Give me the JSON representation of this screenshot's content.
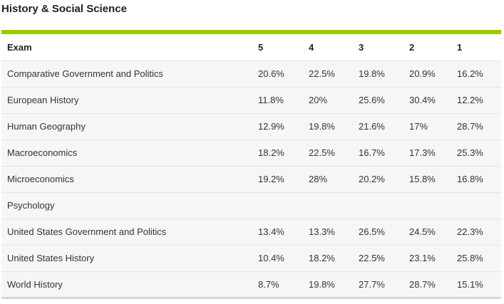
{
  "section": {
    "title": "History & Social Science"
  },
  "colors": {
    "accent": "#99cc00",
    "row_background": "#f6f6f6",
    "header_background": "#ffffff"
  },
  "table": {
    "headers": [
      "Exam",
      "5",
      "4",
      "3",
      "2",
      "1"
    ],
    "rows": [
      [
        "Comparative Government and Politics",
        "20.6%",
        "22.5%",
        "19.8%",
        "20.9%",
        "16.2%"
      ],
      [
        "European History",
        "11.8%",
        "20%",
        "25.6%",
        "30.4%",
        "12.2%"
      ],
      [
        "Human Geography",
        "12.9%",
        "19.8%",
        "21.6%",
        "17%",
        "28.7%"
      ],
      [
        "Macroeconomics",
        "18.2%",
        "22.5%",
        "16.7%",
        "17.3%",
        "25.3%"
      ],
      [
        "Microeconomics",
        "19.2%",
        "28%",
        "20.2%",
        "15.8%",
        "16.8%"
      ],
      [
        "Psychology",
        "",
        "",
        "",
        "",
        ""
      ],
      [
        "United States Government and Politics",
        "13.4%",
        "13.3%",
        "26.5%",
        "24.5%",
        "22.3%"
      ],
      [
        "United States History",
        "10.4%",
        "18.2%",
        "22.5%",
        "23.1%",
        "25.8%"
      ],
      [
        "World History",
        "8.7%",
        "19.8%",
        "27.7%",
        "28.7%",
        "15.1%"
      ]
    ]
  }
}
